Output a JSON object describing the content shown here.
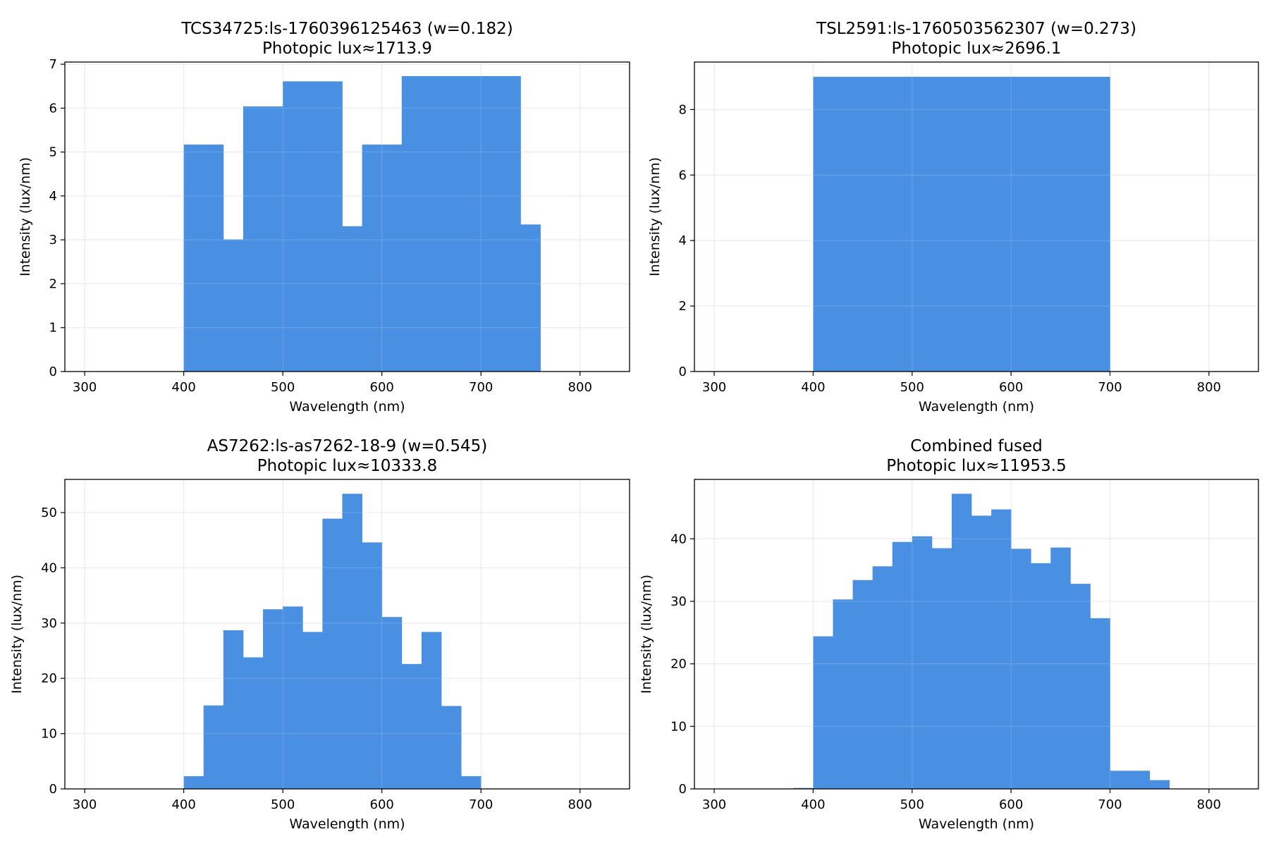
{
  "colors": {
    "bar": "#4a90e2",
    "grid": "#e3e3e3"
  },
  "chart_data": [
    {
      "type": "bar",
      "title": "TCS34725:ls-1760396125463 (w=0.182)",
      "subtitle": "Photopic lux≈1713.9",
      "xlabel": "Wavelength (nm)",
      "ylabel": "Intensity (lux/nm)",
      "xlim": [
        280,
        850
      ],
      "ylim": [
        0,
        7.05
      ],
      "xticks": [
        300,
        400,
        500,
        600,
        700,
        800
      ],
      "yticks": [
        0,
        1,
        2,
        3,
        4,
        5,
        6,
        7
      ],
      "grid": true,
      "bins": [
        {
          "x0": 400,
          "x1": 440,
          "y": 5.17
        },
        {
          "x0": 440,
          "x1": 460,
          "y": 3.01
        },
        {
          "x0": 460,
          "x1": 500,
          "y": 6.04
        },
        {
          "x0": 500,
          "x1": 560,
          "y": 6.61
        },
        {
          "x0": 560,
          "x1": 580,
          "y": 3.31
        },
        {
          "x0": 580,
          "x1": 620,
          "y": 5.17
        },
        {
          "x0": 620,
          "x1": 740,
          "y": 6.73
        },
        {
          "x0": 740,
          "x1": 760,
          "y": 3.35
        }
      ]
    },
    {
      "type": "bar",
      "title": "TSL2591:ls-1760503562307 (w=0.273)",
      "subtitle": "Photopic lux≈2696.1",
      "xlabel": "Wavelength (nm)",
      "ylabel": "Intensity (lux/nm)",
      "xlim": [
        280,
        850
      ],
      "ylim": [
        0,
        9.45
      ],
      "xticks": [
        300,
        400,
        500,
        600,
        700,
        800
      ],
      "yticks": [
        0,
        2,
        4,
        6,
        8
      ],
      "grid": true,
      "bins": [
        {
          "x0": 400,
          "x1": 700,
          "y": 9.0
        }
      ]
    },
    {
      "type": "bar",
      "title": "AS7262:ls-as7262-18-9 (w=0.545)",
      "subtitle": "Photopic lux≈10333.8",
      "xlabel": "Wavelength (nm)",
      "ylabel": "Intensity (lux/nm)",
      "xlim": [
        280,
        850
      ],
      "ylim": [
        0,
        56.0
      ],
      "xticks": [
        300,
        400,
        500,
        600,
        700,
        800
      ],
      "yticks": [
        0,
        10,
        20,
        30,
        40,
        50
      ],
      "grid": true,
      "bins": [
        {
          "x0": 400,
          "x1": 420,
          "y": 2.3
        },
        {
          "x0": 420,
          "x1": 440,
          "y": 15.1
        },
        {
          "x0": 440,
          "x1": 460,
          "y": 28.7
        },
        {
          "x0": 460,
          "x1": 480,
          "y": 23.8
        },
        {
          "x0": 480,
          "x1": 500,
          "y": 32.5
        },
        {
          "x0": 500,
          "x1": 520,
          "y": 33.0
        },
        {
          "x0": 520,
          "x1": 540,
          "y": 28.4
        },
        {
          "x0": 540,
          "x1": 560,
          "y": 48.9
        },
        {
          "x0": 560,
          "x1": 580,
          "y": 53.4
        },
        {
          "x0": 580,
          "x1": 600,
          "y": 44.6
        },
        {
          "x0": 600,
          "x1": 620,
          "y": 31.1
        },
        {
          "x0": 620,
          "x1": 640,
          "y": 22.6
        },
        {
          "x0": 640,
          "x1": 660,
          "y": 28.4
        },
        {
          "x0": 660,
          "x1": 680,
          "y": 15.0
        },
        {
          "x0": 680,
          "x1": 700,
          "y": 2.3
        }
      ]
    },
    {
      "type": "bar",
      "title": "Combined fused",
      "subtitle": "Photopic lux≈11953.5",
      "xlabel": "Wavelength (nm)",
      "ylabel": "Intensity (lux/nm)",
      "xlim": [
        280,
        850
      ],
      "ylim": [
        0,
        49.5
      ],
      "xticks": [
        300,
        400,
        500,
        600,
        700,
        800
      ],
      "yticks": [
        0,
        10,
        20,
        30,
        40
      ],
      "grid": true,
      "bins": [
        {
          "x0": 380,
          "x1": 400,
          "y": 0.15
        },
        {
          "x0": 400,
          "x1": 420,
          "y": 24.4
        },
        {
          "x0": 420,
          "x1": 440,
          "y": 30.3
        },
        {
          "x0": 440,
          "x1": 460,
          "y": 33.4
        },
        {
          "x0": 460,
          "x1": 480,
          "y": 35.6
        },
        {
          "x0": 480,
          "x1": 500,
          "y": 39.5
        },
        {
          "x0": 500,
          "x1": 520,
          "y": 40.4
        },
        {
          "x0": 520,
          "x1": 540,
          "y": 38.5
        },
        {
          "x0": 540,
          "x1": 560,
          "y": 47.2
        },
        {
          "x0": 560,
          "x1": 580,
          "y": 43.7
        },
        {
          "x0": 580,
          "x1": 600,
          "y": 44.7
        },
        {
          "x0": 600,
          "x1": 620,
          "y": 38.4
        },
        {
          "x0": 620,
          "x1": 640,
          "y": 36.1
        },
        {
          "x0": 640,
          "x1": 660,
          "y": 38.6
        },
        {
          "x0": 660,
          "x1": 680,
          "y": 32.8
        },
        {
          "x0": 680,
          "x1": 700,
          "y": 27.3
        },
        {
          "x0": 700,
          "x1": 740,
          "y": 2.9
        },
        {
          "x0": 740,
          "x1": 760,
          "y": 1.4
        }
      ]
    }
  ]
}
